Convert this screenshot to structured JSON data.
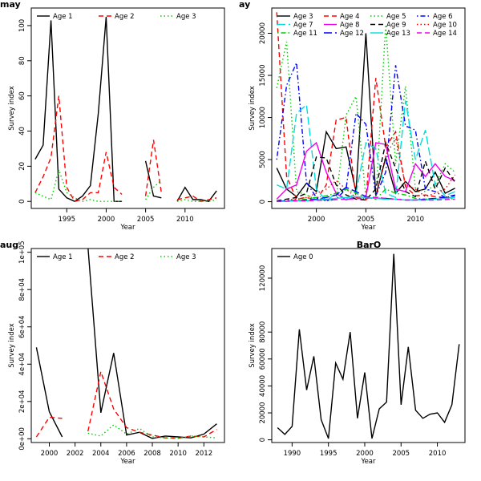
{
  "chart_data": [
    {
      "type": "line",
      "title": "may",
      "xlabel": "Year",
      "ylabel": "Survey index",
      "xlim": [
        1990.5,
        2015
      ],
      "ylim": [
        -4,
        110
      ],
      "xticks": [
        1995,
        2000,
        2005,
        2010
      ],
      "yticks": [
        0,
        20,
        40,
        60,
        80,
        100
      ],
      "ytick_labels": [
        "0",
        "20",
        "40",
        "60",
        "80",
        "100"
      ],
      "legend": {
        "placement": "top",
        "columns": 3
      },
      "series": [
        {
          "name": "Age 1",
          "color": "#000000",
          "dash": "solid",
          "x": [
            1991,
            1992,
            1993,
            1994,
            1995,
            1996,
            1997,
            1998,
            1999,
            2000,
            2001,
            2002,
            null,
            2005,
            2006,
            2007,
            null,
            2009,
            2010,
            2011,
            2012,
            2013,
            2014
          ],
          "y": [
            24,
            32,
            103,
            7,
            2,
            0,
            3,
            9,
            50,
            105,
            0,
            0,
            null,
            23,
            3,
            2,
            null,
            0,
            8,
            1,
            1,
            0,
            6
          ]
        },
        {
          "name": "Age 2",
          "color": "#ff0000",
          "dash": "dashed",
          "x": [
            1991,
            1992,
            1993,
            1994,
            1995,
            1996,
            1997,
            1998,
            1999,
            2000,
            2001,
            2002,
            null,
            2005,
            2006,
            2007,
            null,
            2009,
            2010,
            2011,
            2012,
            2013,
            2014
          ],
          "y": [
            5,
            14,
            25,
            60,
            8,
            0,
            1,
            5,
            5,
            28,
            8,
            4,
            null,
            3,
            35,
            5,
            null,
            1,
            2,
            3,
            0,
            1,
            2
          ]
        },
        {
          "name": "Age 3",
          "color": "#00cc00",
          "dash": "dotted",
          "x": [
            1991,
            1992,
            1993,
            1994,
            1995,
            1996,
            1997,
            1998,
            1999,
            2000,
            2001,
            2002,
            null,
            2005,
            2006,
            2007,
            null,
            2009,
            2010,
            2011,
            2012,
            2013,
            2014
          ],
          "y": [
            5,
            3,
            1,
            18,
            5,
            2,
            0,
            1,
            0,
            0,
            0,
            0,
            null,
            1,
            8,
            12,
            null,
            0,
            1,
            0,
            0,
            0,
            1
          ]
        }
      ]
    },
    {
      "type": "line",
      "title": "ay",
      "xlabel": "Year",
      "ylabel": "Survey index",
      "xlim": [
        1995.5,
        2015
      ],
      "ylim": [
        -800,
        23000
      ],
      "xticks": [
        2000,
        2005,
        2010
      ],
      "yticks": [
        0,
        5000,
        10000,
        15000,
        20000
      ],
      "ytick_labels": [
        "0",
        "5000",
        "10000",
        "15000",
        "20000"
      ],
      "legend": {
        "placement": "top",
        "columns": 4
      },
      "series": [
        {
          "name": "Age 3",
          "color": "#000000",
          "dash": "solid",
          "x": [
            1996,
            1997,
            1998,
            1999,
            2000,
            2001,
            2002,
            2003,
            2004,
            2005,
            2006,
            2007,
            2008,
            2009,
            2010,
            2011,
            2012,
            2013,
            2014
          ],
          "y": [
            4000,
            1500,
            600,
            2200,
            1200,
            8300,
            6300,
            6500,
            1200,
            20000,
            700,
            5200,
            1000,
            2400,
            1200,
            1500,
            3500,
            1000,
            1600
          ]
        },
        {
          "name": "Age 4",
          "color": "#ff0000",
          "dash": "dashed",
          "x": [
            1996,
            1997,
            1998,
            1999,
            2000,
            2001,
            2002,
            2003,
            2004,
            2005,
            2006,
            2007,
            2008,
            2009,
            2010,
            2011,
            2012,
            2013,
            2014
          ],
          "y": [
            22500,
            3000,
            300,
            500,
            200,
            2000,
            9700,
            10000,
            500,
            200,
            14700,
            6500,
            8300,
            1800,
            700,
            800,
            600,
            500,
            400
          ]
        },
        {
          "name": "Age 5",
          "color": "#00cc00",
          "dash": "dotted",
          "x": [
            1996,
            1997,
            1998,
            1999,
            2000,
            2001,
            2002,
            2003,
            2004,
            2005,
            2006,
            2007,
            2008,
            2009,
            2010,
            2011,
            2012,
            2013,
            2014
          ],
          "y": [
            13500,
            19000,
            1200,
            800,
            200,
            100,
            300,
            10300,
            12500,
            500,
            400,
            21000,
            4500,
            13700,
            1500,
            1200,
            2000,
            4500,
            3500
          ]
        },
        {
          "name": "Age 6",
          "color": "#0000ff",
          "dash": "dashdot",
          "x": [
            1996,
            1997,
            1998,
            1999,
            2000,
            2001,
            2002,
            2003,
            2004,
            2005,
            2006,
            2007,
            2008,
            2009,
            2010,
            2011,
            2012,
            2013,
            2014
          ],
          "y": [
            5000,
            13800,
            16500,
            2300,
            500,
            100,
            300,
            1500,
            10500,
            9200,
            700,
            3500,
            16200,
            9000,
            8500,
            1500,
            1200,
            500,
            700
          ]
        },
        {
          "name": "Age 7",
          "color": "#00dddd",
          "dash": "longdash",
          "x": [
            1996,
            1997,
            1998,
            1999,
            2000,
            2001,
            2002,
            2003,
            2004,
            2005,
            2006,
            2007,
            2008,
            2009,
            2010,
            2011,
            2012,
            2013,
            2014
          ],
          "y": [
            2000,
            1500,
            10500,
            11500,
            1500,
            100,
            1000,
            300,
            1000,
            7000,
            6300,
            1000,
            500,
            12000,
            5000,
            8500,
            2000,
            700,
            1200
          ]
        },
        {
          "name": "Age 8",
          "color": "#ee00ee",
          "dash": "solid",
          "x": [
            1996,
            1997,
            1998,
            1999,
            2000,
            2001,
            2002,
            2003,
            2004,
            2005,
            2006,
            2007,
            2008,
            2009,
            2010,
            2011,
            2012,
            2013,
            2014
          ],
          "y": [
            300,
            1500,
            2000,
            6000,
            7000,
            3500,
            1000,
            200,
            600,
            500,
            7000,
            6800,
            1500,
            1200,
            4500,
            3000,
            4500,
            3000,
            2500
          ]
        },
        {
          "name": "Age 9",
          "color": "#000000",
          "dash": "dashed",
          "x": [
            1996,
            1997,
            1998,
            1999,
            2000,
            2001,
            2002,
            2003,
            2004,
            2005,
            2006,
            2007,
            2008,
            2009,
            2010,
            2011,
            2012,
            2013,
            2014
          ],
          "y": [
            100,
            300,
            500,
            1000,
            5300,
            5200,
            2000,
            800,
            300,
            200,
            1500,
            7000,
            4000,
            1200,
            600,
            4800,
            1500,
            4000,
            2300
          ]
        },
        {
          "name": "Age 10",
          "color": "#ff0000",
          "dash": "dotted",
          "x": [
            1996,
            1997,
            1998,
            1999,
            2000,
            2001,
            2002,
            2003,
            2004,
            2005,
            2006,
            2007,
            2008,
            2009,
            2010,
            2011,
            2012,
            2013,
            2014
          ],
          "y": [
            100,
            200,
            300,
            500,
            1000,
            1500,
            2500,
            1500,
            500,
            300,
            600,
            5500,
            7500,
            2000,
            1500,
            600,
            1000,
            1500,
            3200
          ]
        },
        {
          "name": "Age 11",
          "color": "#00cc00",
          "dash": "dashdot",
          "x": [
            1996,
            1997,
            1998,
            1999,
            2000,
            2001,
            2002,
            2003,
            2004,
            2005,
            2006,
            2007,
            2008,
            2009,
            2010,
            2011,
            2012,
            2013,
            2014
          ],
          "y": [
            50,
            100,
            200,
            300,
            500,
            700,
            1000,
            1500,
            1000,
            500,
            300,
            1500,
            1000,
            800,
            400,
            300,
            300,
            400,
            300
          ]
        },
        {
          "name": "Age 12",
          "color": "#0000ff",
          "dash": "longdash",
          "x": [
            1996,
            1997,
            1998,
            1999,
            2000,
            2001,
            2002,
            2003,
            2004,
            2005,
            2006,
            2007,
            2008,
            2009,
            2010,
            2011,
            2012,
            2013,
            2014
          ],
          "y": [
            50,
            100,
            100,
            200,
            300,
            500,
            800,
            1700,
            1200,
            600,
            400,
            400,
            300,
            200,
            200,
            300,
            400,
            500,
            800
          ]
        },
        {
          "name": "Age 13",
          "color": "#00dddd",
          "dash": "solid",
          "x": [
            1996,
            1997,
            1998,
            1999,
            2000,
            2001,
            2002,
            2003,
            2004,
            2005,
            2006,
            2007,
            2008,
            2009,
            2010,
            2011,
            2012,
            2013,
            2014
          ],
          "y": [
            30,
            50,
            100,
            100,
            200,
            300,
            400,
            500,
            600,
            500,
            400,
            300,
            300,
            200,
            200,
            200,
            300,
            400,
            500
          ]
        },
        {
          "name": "Age 14",
          "color": "#ee00ee",
          "dash": "dashed",
          "x": [
            1996,
            1997,
            1998,
            1999,
            2000,
            2001,
            2002,
            2003,
            2004,
            2005,
            2006,
            2007,
            2008,
            2009,
            2010,
            2011,
            2012,
            2013,
            2014
          ],
          "y": [
            20,
            50,
            100,
            100,
            150,
            200,
            250,
            300,
            350,
            400,
            500,
            400,
            300,
            200,
            200,
            200,
            200,
            250,
            300
          ]
        }
      ]
    },
    {
      "type": "line",
      "title": "aug",
      "xlabel": "Year",
      "ylabel": "Survey index",
      "xlim": [
        1998.6,
        2013.6
      ],
      "ylim": [
        -2000,
        102000
      ],
      "xticks": [
        2000,
        2002,
        2004,
        2006,
        2008,
        2010,
        2012
      ],
      "yticks": [
        0,
        20000,
        40000,
        60000,
        80000,
        100000
      ],
      "ytick_labels": [
        "0e+00",
        "2e+04",
        "4e+04",
        "6e+04",
        "8e+04",
        "1e+05"
      ],
      "legend": {
        "placement": "top",
        "columns": 3
      },
      "series": [
        {
          "name": "Age 1",
          "color": "#000000",
          "dash": "solid",
          "x": [
            1999,
            2000,
            2001,
            null,
            2003,
            2004,
            2005,
            2006,
            2007,
            2008,
            2009,
            2010,
            2011,
            2012,
            2013
          ],
          "y": [
            49000,
            14500,
            1000,
            null,
            103000,
            14000,
            46000,
            2000,
            3500,
            200,
            1500,
            1000,
            500,
            2500,
            8000
          ]
        },
        {
          "name": "Age 2",
          "color": "#ff0000",
          "dash": "dashed",
          "x": [
            1999,
            2000,
            2001,
            null,
            2003,
            2004,
            2005,
            2006,
            2007,
            2008,
            2009,
            2010,
            2011,
            2012,
            2013
          ],
          "y": [
            1000,
            11500,
            11000,
            null,
            4000,
            36000,
            16000,
            6000,
            3500,
            2000,
            500,
            300,
            1500,
            1000,
            5000
          ]
        },
        {
          "name": "Age 3",
          "color": "#00cc00",
          "dash": "dotted",
          "x": [
            1999,
            2000,
            2001,
            null,
            2003,
            2004,
            2005,
            2006,
            2007,
            2008,
            2009,
            2010,
            2011,
            2012,
            2013
          ],
          "y": [
            null,
            null,
            null,
            null,
            3000,
            1500,
            7500,
            2500,
            5500,
            1000,
            500,
            200,
            1500,
            1000,
            500
          ]
        }
      ]
    },
    {
      "type": "line",
      "title": "BarO",
      "xlabel": "Year",
      "ylabel": "Survey index",
      "xlim": [
        1987.2,
        2013.8
      ],
      "ylim": [
        -2000,
        142000
      ],
      "xticks": [
        1990,
        1995,
        2000,
        2005,
        2010
      ],
      "yticks": [
        0,
        20000,
        40000,
        60000,
        80000,
        120000
      ],
      "ytick_labels": [
        "0",
        "20000",
        "40000",
        "60000",
        "80000",
        "120000"
      ],
      "legend": {
        "placement": "top-left",
        "columns": 1
      },
      "series": [
        {
          "name": "Age 0",
          "color": "#000000",
          "dash": "solid",
          "x": [
            1988,
            1989,
            1990,
            1991,
            1992,
            1993,
            1994,
            1995,
            1996,
            1997,
            1998,
            1999,
            2000,
            2001,
            2002,
            2003,
            2004,
            2005,
            2006,
            2007,
            2008,
            2009,
            2010,
            2011,
            2012,
            2013
          ],
          "y": [
            9000,
            4000,
            10000,
            82000,
            37000,
            62000,
            15000,
            1000,
            57000,
            45000,
            80000,
            16000,
            50000,
            1000,
            23000,
            28000,
            138000,
            26000,
            69000,
            22000,
            16000,
            19000,
            20000,
            13000,
            26000,
            71000
          ]
        }
      ]
    }
  ]
}
